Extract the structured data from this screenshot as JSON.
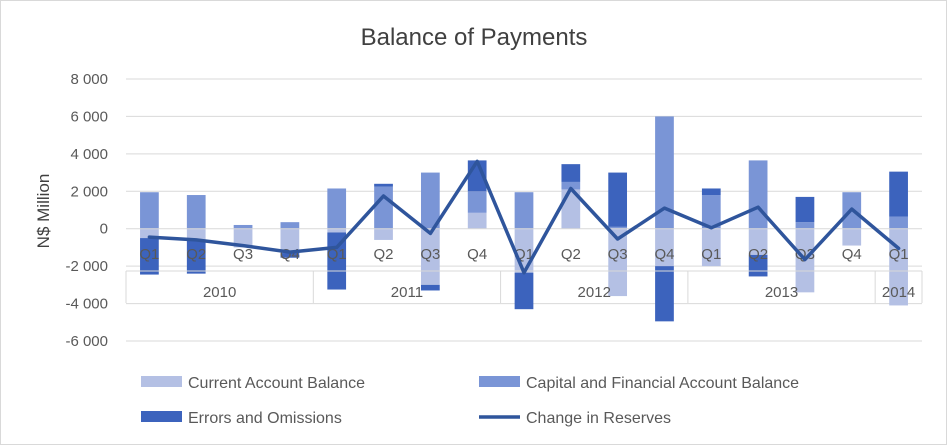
{
  "chart_data": {
    "type": "bar",
    "stacked": true,
    "title": "Balance of Payments",
    "xlabel": "",
    "ylabel": "N$ Million",
    "ylim": [
      -6000,
      8000
    ],
    "yticks": [
      -6000,
      -4000,
      -2000,
      0,
      2000,
      4000,
      6000,
      8000
    ],
    "ytick_labels": [
      "-6 000",
      "-4 000",
      "-2 000",
      "0",
      "2 000",
      "4 000",
      "6 000",
      "8 000"
    ],
    "grid": true,
    "legend_position": "bottom",
    "categories": [
      "Q1",
      "Q2",
      "Q3",
      "Q4",
      "Q1",
      "Q2",
      "Q3",
      "Q4",
      "Q1",
      "Q2",
      "Q3",
      "Q4",
      "Q1",
      "Q2",
      "Q3",
      "Q4",
      "Q1"
    ],
    "years": [
      {
        "label": "2010",
        "count": 4
      },
      {
        "label": "2011",
        "count": 4
      },
      {
        "label": "2012",
        "count": 4
      },
      {
        "label": "2013",
        "count": 4
      },
      {
        "label": "2014",
        "count": 1
      }
    ],
    "series": [
      {
        "name": "Current Account Balance",
        "kind": "bar",
        "color": "#b4c0e4",
        "values": [
          -500,
          -650,
          -1000,
          -1300,
          -200,
          -600,
          -3000,
          850,
          -2350,
          2100,
          -3600,
          -2000,
          -2000,
          -1400,
          -3400,
          -900,
          -4100
        ]
      },
      {
        "name": "Capital and Financial Account Balance",
        "kind": "bar",
        "color": "#7a95d6",
        "values": [
          1950,
          1800,
          200,
          350,
          2150,
          2250,
          3000,
          1150,
          1950,
          400,
          100,
          6000,
          1800,
          3650,
          350,
          1950,
          650
        ]
      },
      {
        "name": "Errors and Omissions",
        "kind": "bar",
        "color": "#3c63bd",
        "values": [
          -1950,
          -1750,
          0,
          -250,
          -3050,
          150,
          -300,
          1650,
          -1950,
          950,
          2900,
          -2950,
          350,
          -1150,
          1350,
          0,
          2400
        ]
      },
      {
        "name": "Change in Reserves",
        "kind": "line",
        "color": "#2f559c",
        "values": [
          -450,
          -600,
          -900,
          -1250,
          -1000,
          1750,
          -250,
          3600,
          -2350,
          2150,
          -550,
          1100,
          50,
          1150,
          -1650,
          1050,
          -1050
        ]
      }
    ]
  }
}
